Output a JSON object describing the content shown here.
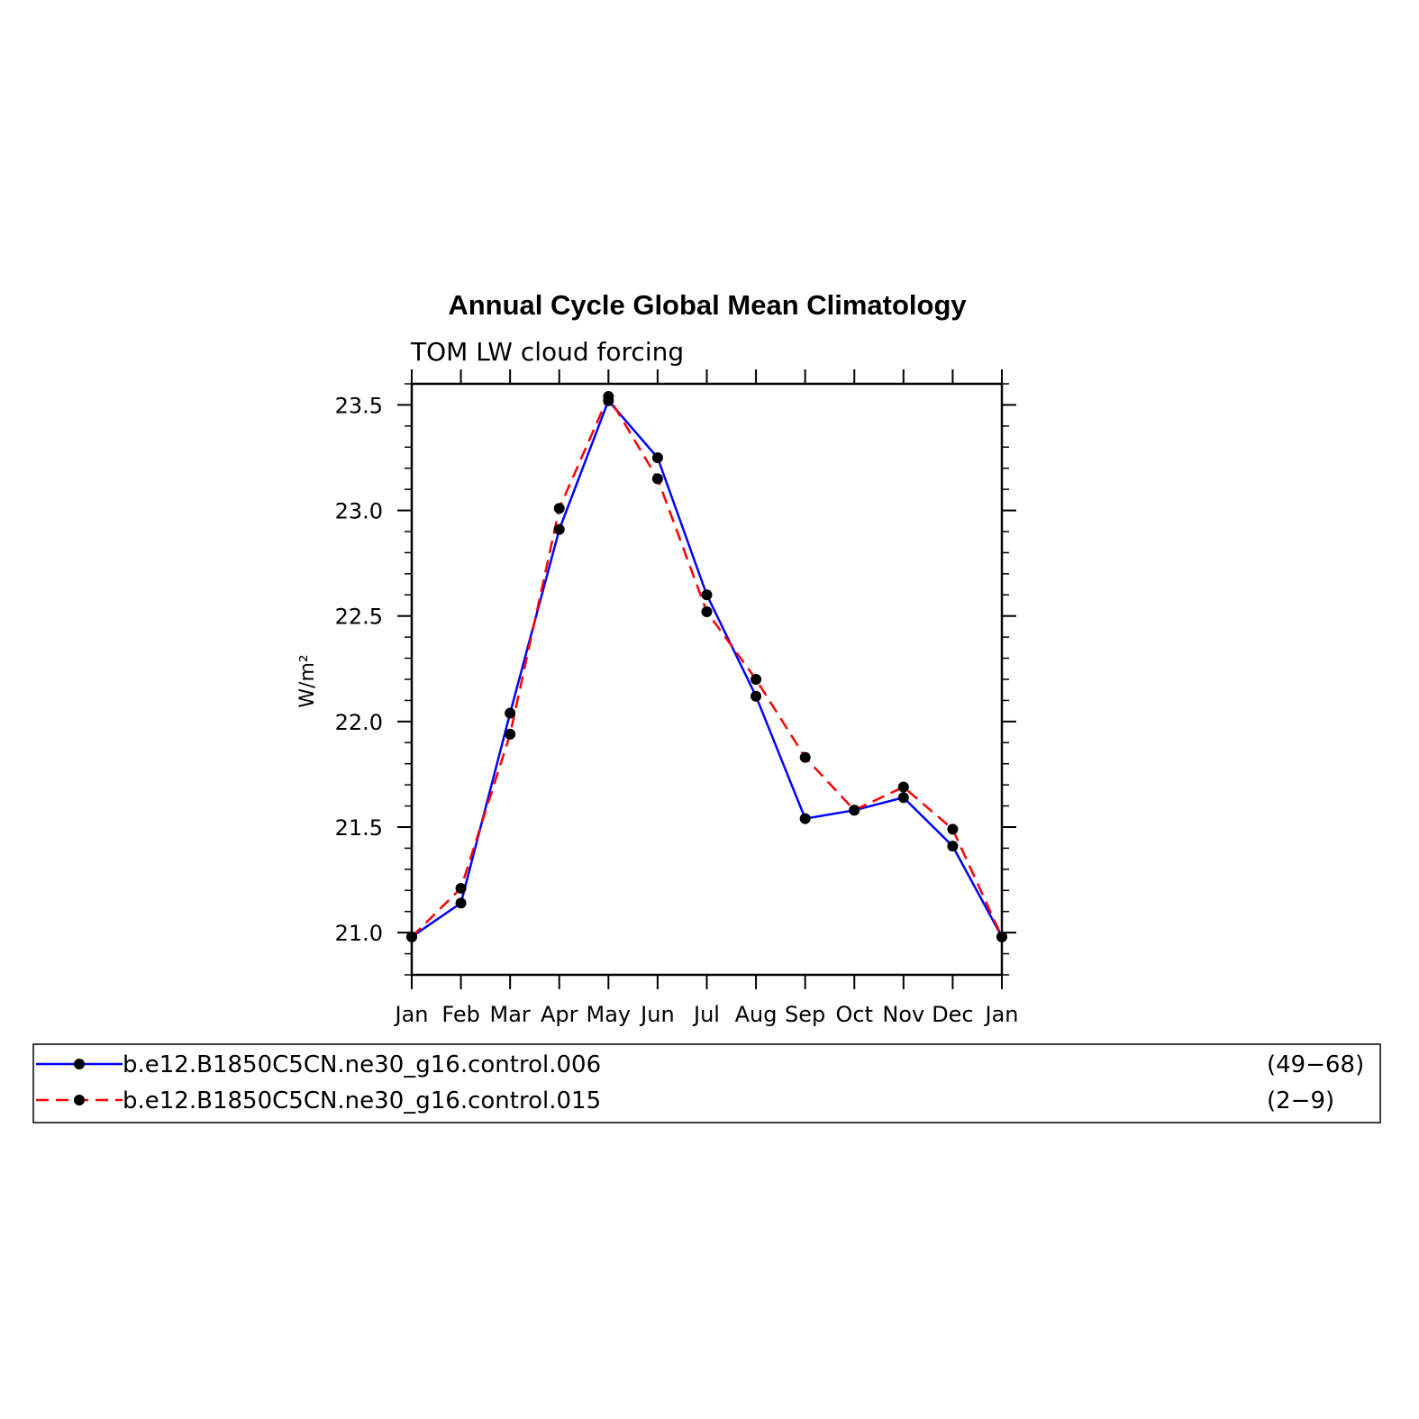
{
  "chart_data": {
    "type": "line",
    "title": "Annual Cycle Global Mean Climatology",
    "subtitle": "TOM LW cloud forcing",
    "ylabel": "W/m²",
    "xlabel": "",
    "categories": [
      "Jan",
      "Feb",
      "Mar",
      "Apr",
      "May",
      "Jun",
      "Jul",
      "Aug",
      "Sep",
      "Oct",
      "Nov",
      "Dec",
      "Jan"
    ],
    "ylim": [
      20.8,
      23.6
    ],
    "yticks": [
      "21.0",
      "21.5",
      "22.0",
      "22.5",
      "23.0",
      "23.5"
    ],
    "grid": false,
    "legend_position": "bottom",
    "series": [
      {
        "name": "b.e12.B1850C5CN.ne30_g16.control.006",
        "years": "(49−68)",
        "color": "#0000ff",
        "dash": "solid",
        "values": [
          20.98,
          21.14,
          22.04,
          22.91,
          23.52,
          23.25,
          22.6,
          22.12,
          21.54,
          21.58,
          21.64,
          21.41,
          20.98
        ]
      },
      {
        "name": "b.e12.B1850C5CN.ne30_g16.control.015",
        "years": "(2−9)",
        "color": "#ff0000",
        "dash": "dashed",
        "values": [
          20.98,
          21.21,
          21.94,
          23.01,
          23.54,
          23.15,
          22.52,
          22.2,
          21.83,
          21.58,
          21.69,
          21.49,
          20.98
        ]
      }
    ]
  }
}
